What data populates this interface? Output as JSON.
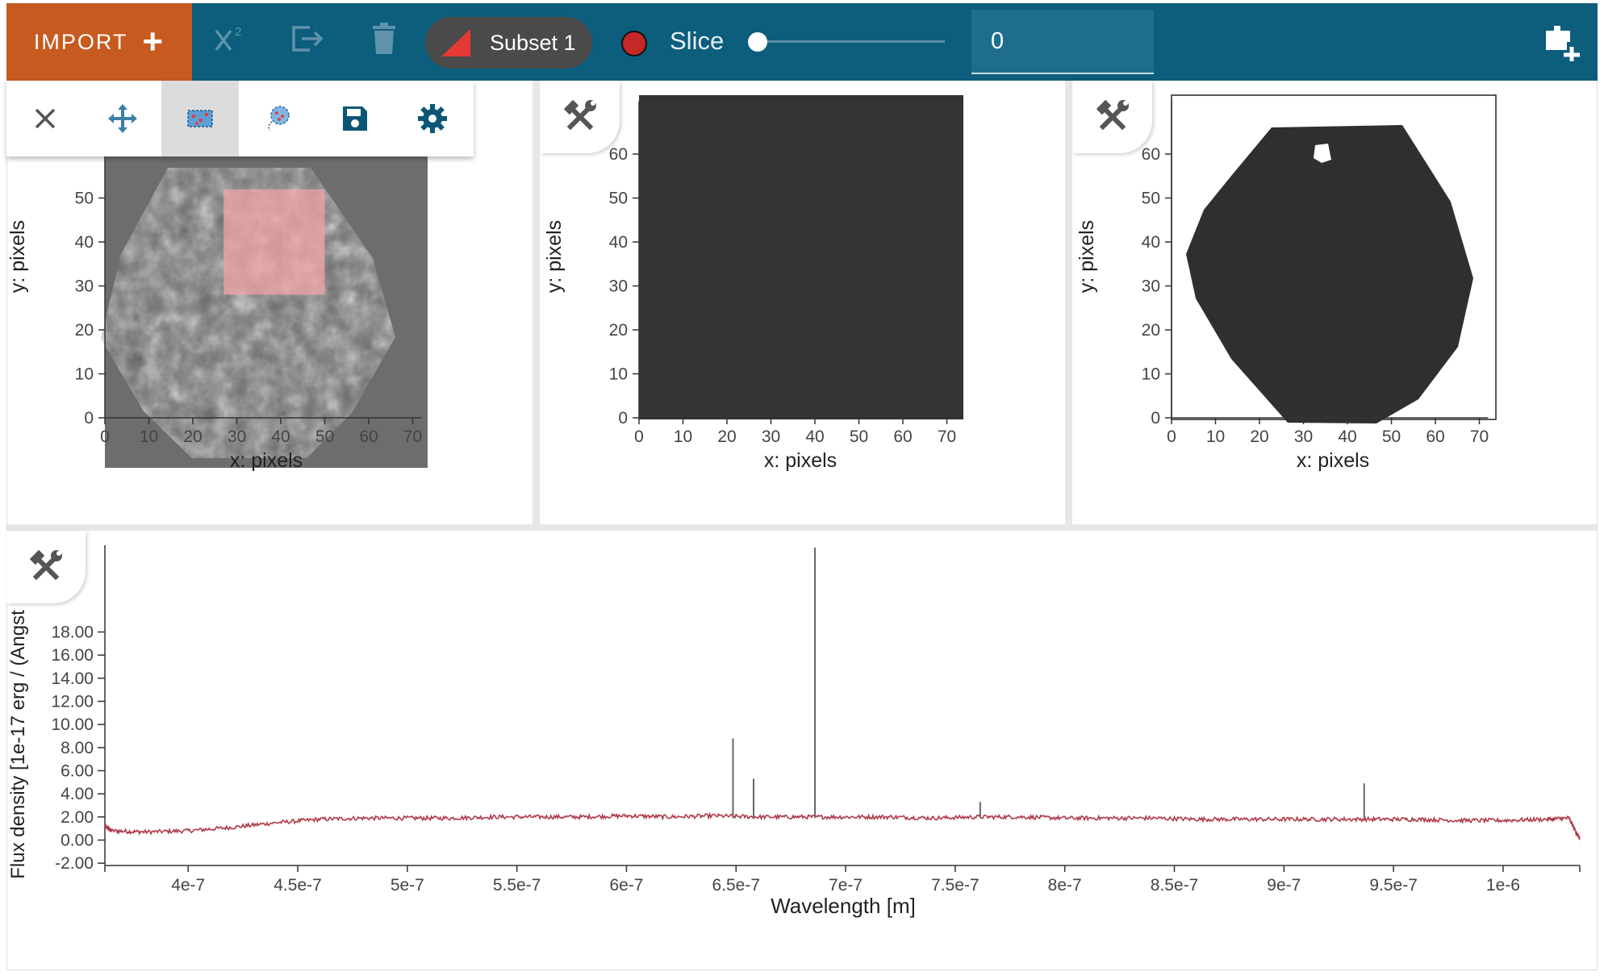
{
  "toolbar": {
    "import_label": "IMPORT",
    "import_plus": "+",
    "subset_label": "Subset 1",
    "subset_color": "#e53935",
    "slice_label": "Slice",
    "slice_value": "0",
    "slice_position": 0,
    "icons": [
      "chi-squared-icon",
      "export-icon",
      "trash-icon",
      "add-viewer-icon"
    ]
  },
  "image_tools": [
    "close-icon",
    "pan-zoom-icon",
    "rect-select-icon",
    "lasso-select-icon",
    "save-icon",
    "settings-icon"
  ],
  "viewers": [
    {
      "name": "cube-viewer",
      "xlabel": "x: pixels",
      "ylabel": "y: pixels",
      "xticks": [
        "0",
        "10",
        "20",
        "30",
        "40",
        "50",
        "60",
        "70"
      ],
      "yticks": [
        "0",
        "10",
        "20",
        "30",
        "40",
        "50"
      ],
      "subset_rect": {
        "x0": 27,
        "x1": 50,
        "y0": 28,
        "y1": 52
      },
      "subset_color": "#f4a6a6"
    },
    {
      "name": "uncertainty-viewer",
      "xlabel": "x: pixels",
      "ylabel": "y: pixels",
      "xticks": [
        "0",
        "10",
        "20",
        "30",
        "40",
        "50",
        "60",
        "70"
      ],
      "yticks": [
        "0",
        "10",
        "20",
        "30",
        "40",
        "50",
        "60"
      ],
      "fill_color": "#333333"
    },
    {
      "name": "mask-viewer",
      "xlabel": "x: pixels",
      "ylabel": "y: pixels",
      "xticks": [
        "0",
        "10",
        "20",
        "30",
        "40",
        "50",
        "60",
        "70"
      ],
      "yticks": [
        "0",
        "10",
        "20",
        "30",
        "40",
        "50",
        "60"
      ],
      "fill_color": "#2f2f2f"
    }
  ],
  "chart_data": {
    "type": "line",
    "xlabel": "Wavelength [m]",
    "ylabel": "Flux density [1e-17 erg / (Angst",
    "x_tick_labels": [
      "4e-7",
      "4.5e-7",
      "5e-7",
      "5.5e-7",
      "6e-7",
      "6.5e-7",
      "7e-7",
      "7.5e-7",
      "8e-7",
      "8.5e-7",
      "9e-7",
      "9.5e-7",
      "1e-6"
    ],
    "x_ticks": [
      4e-07,
      4.5e-07,
      5e-07,
      5.5e-07,
      6e-07,
      6.5e-07,
      7e-07,
      7.5e-07,
      8e-07,
      8.5e-07,
      9e-07,
      9.5e-07,
      1e-06
    ],
    "y_tick_labels": [
      "-2.00",
      "0.00",
      "2.00",
      "4.00",
      "6.00",
      "8.00",
      "10.00",
      "12.00",
      "14.00",
      "16.00",
      "18.00"
    ],
    "y_ticks": [
      -2,
      0,
      2,
      4,
      6,
      8,
      10,
      12,
      14,
      16,
      18
    ],
    "xlim": [
      3.62e-07,
      1.035e-06
    ],
    "ylim": [
      -2.2,
      25.5
    ],
    "series": [
      {
        "color": "#b03a48",
        "x": [
          3.62e-07,
          3.65e-07,
          3.8e-07,
          4e-07,
          4.2e-07,
          4.4e-07,
          4.6e-07,
          4.8e-07,
          5e-07,
          5.2e-07,
          5.4e-07,
          5.6e-07,
          5.8e-07,
          6e-07,
          6.2e-07,
          6.4e-07,
          6.6e-07,
          6.8e-07,
          7e-07,
          7.2e-07,
          7.4e-07,
          7.6e-07,
          7.8e-07,
          8e-07,
          8.2e-07,
          8.4e-07,
          8.6e-07,
          8.8e-07,
          9e-07,
          9.2e-07,
          9.4e-07,
          9.6e-07,
          9.8e-07,
          1e-06,
          1.02e-06,
          1.03e-06,
          1.035e-06
        ],
        "y": [
          1.2,
          0.8,
          0.7,
          0.8,
          1.1,
          1.5,
          1.8,
          1.9,
          1.9,
          1.9,
          2.0,
          2.0,
          2.0,
          2.1,
          2.0,
          2.1,
          2.0,
          2.0,
          2.0,
          2.0,
          1.9,
          2.0,
          2.0,
          1.9,
          1.9,
          1.9,
          1.8,
          1.8,
          1.8,
          1.8,
          1.8,
          1.8,
          1.7,
          1.7,
          1.8,
          1.9,
          0.1
        ]
      },
      {
        "color": "#666666",
        "peaks": [
          {
            "x": 6.486e-07,
            "y": 8.8
          },
          {
            "x": 6.58e-07,
            "y": 5.3
          },
          {
            "x": 6.86e-07,
            "y": 25.3
          },
          {
            "x": 7.614e-07,
            "y": 3.3
          },
          {
            "x": 9.366e-07,
            "y": 4.9
          }
        ]
      }
    ]
  }
}
